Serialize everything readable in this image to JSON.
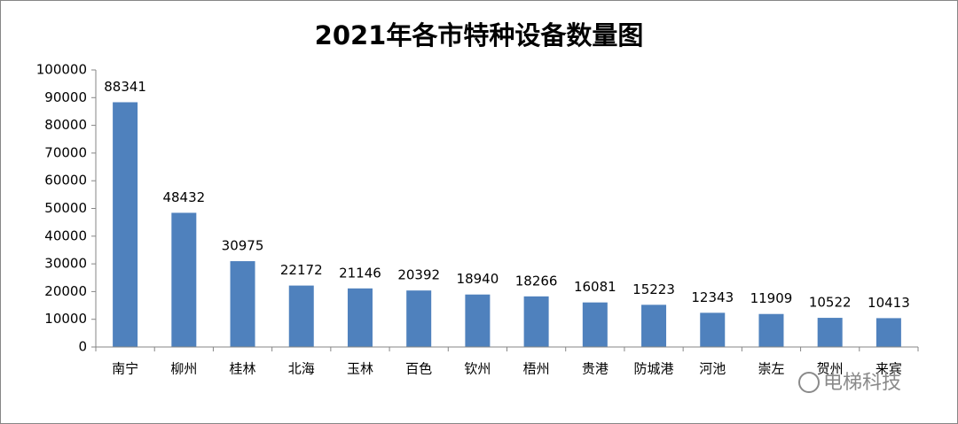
{
  "chart_data": {
    "type": "bar",
    "title": "2021年各市特种设备数量图",
    "categories": [
      "南宁",
      "柳州",
      "桂林",
      "北海",
      "玉林",
      "百色",
      "钦州",
      "梧州",
      "贵港",
      "防城港",
      "河池",
      "崇左",
      "贺州",
      "来宾"
    ],
    "values": [
      88341,
      48432,
      30975,
      22172,
      21146,
      20392,
      18940,
      18266,
      16081,
      15223,
      12343,
      11909,
      10522,
      10413
    ],
    "color": "#4f81bd",
    "ylim": [
      0,
      100000
    ],
    "yticks": [
      0,
      10000,
      20000,
      30000,
      40000,
      50000,
      60000,
      70000,
      80000,
      90000,
      100000
    ],
    "grid": false,
    "watermark": "电梯科技"
  }
}
